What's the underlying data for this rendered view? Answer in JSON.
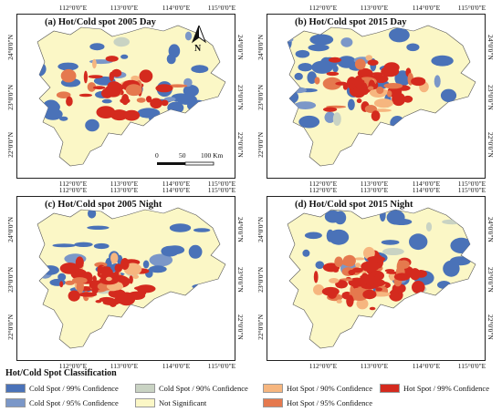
{
  "colors": {
    "cold99": "#4a72b8",
    "cold95": "#7b97c8",
    "cold90": "#c9d3c3",
    "notsig": "#fbf7c6",
    "hot90": "#f6b67f",
    "hot95": "#e5794e",
    "hot99": "#d42a1e",
    "frame": "#222222",
    "background": "#ffffff"
  },
  "panels": [
    {
      "title": "(a) Hot/Cold spot 2005 Day",
      "variant": "day2005"
    },
    {
      "title": "(b) Hot/Cold spot 2015 Day",
      "variant": "day2015"
    },
    {
      "title": "(c) Hot/Cold spot 2005 Night",
      "variant": "night2005"
    },
    {
      "title": "(d) Hot/Cold spot 2015 Night",
      "variant": "night2015"
    }
  ],
  "ticks": {
    "lon": [
      "112°0'0\"E",
      "113°0'0\"E",
      "114°0'0\"E",
      "115°0'0\"E"
    ],
    "lat": [
      "24°0'0\"N",
      "23°0'0\"N",
      "22°0'0\"N"
    ]
  },
  "north_label": "N",
  "scalebar": {
    "labels": [
      "0",
      "50",
      "100 Km"
    ]
  },
  "legend": {
    "title": "Hot/Cold Spot Classification",
    "items": [
      {
        "label": "Cold Spot / 99% Confidence",
        "color_key": "cold99"
      },
      {
        "label": "Cold Spot / 95% Confidence",
        "color_key": "cold95"
      },
      {
        "label": "Cold Spot / 90% Confidence",
        "color_key": "cold90"
      },
      {
        "label": "Not Significant",
        "color_key": "notsig"
      },
      {
        "label": "Hot Spot / 90% Confidence",
        "color_key": "hot90"
      },
      {
        "label": "Hot Spot / 95% Confidence",
        "color_key": "hot95"
      },
      {
        "label": "Hot Spot / 99% Confidence",
        "color_key": "hot99"
      }
    ]
  }
}
